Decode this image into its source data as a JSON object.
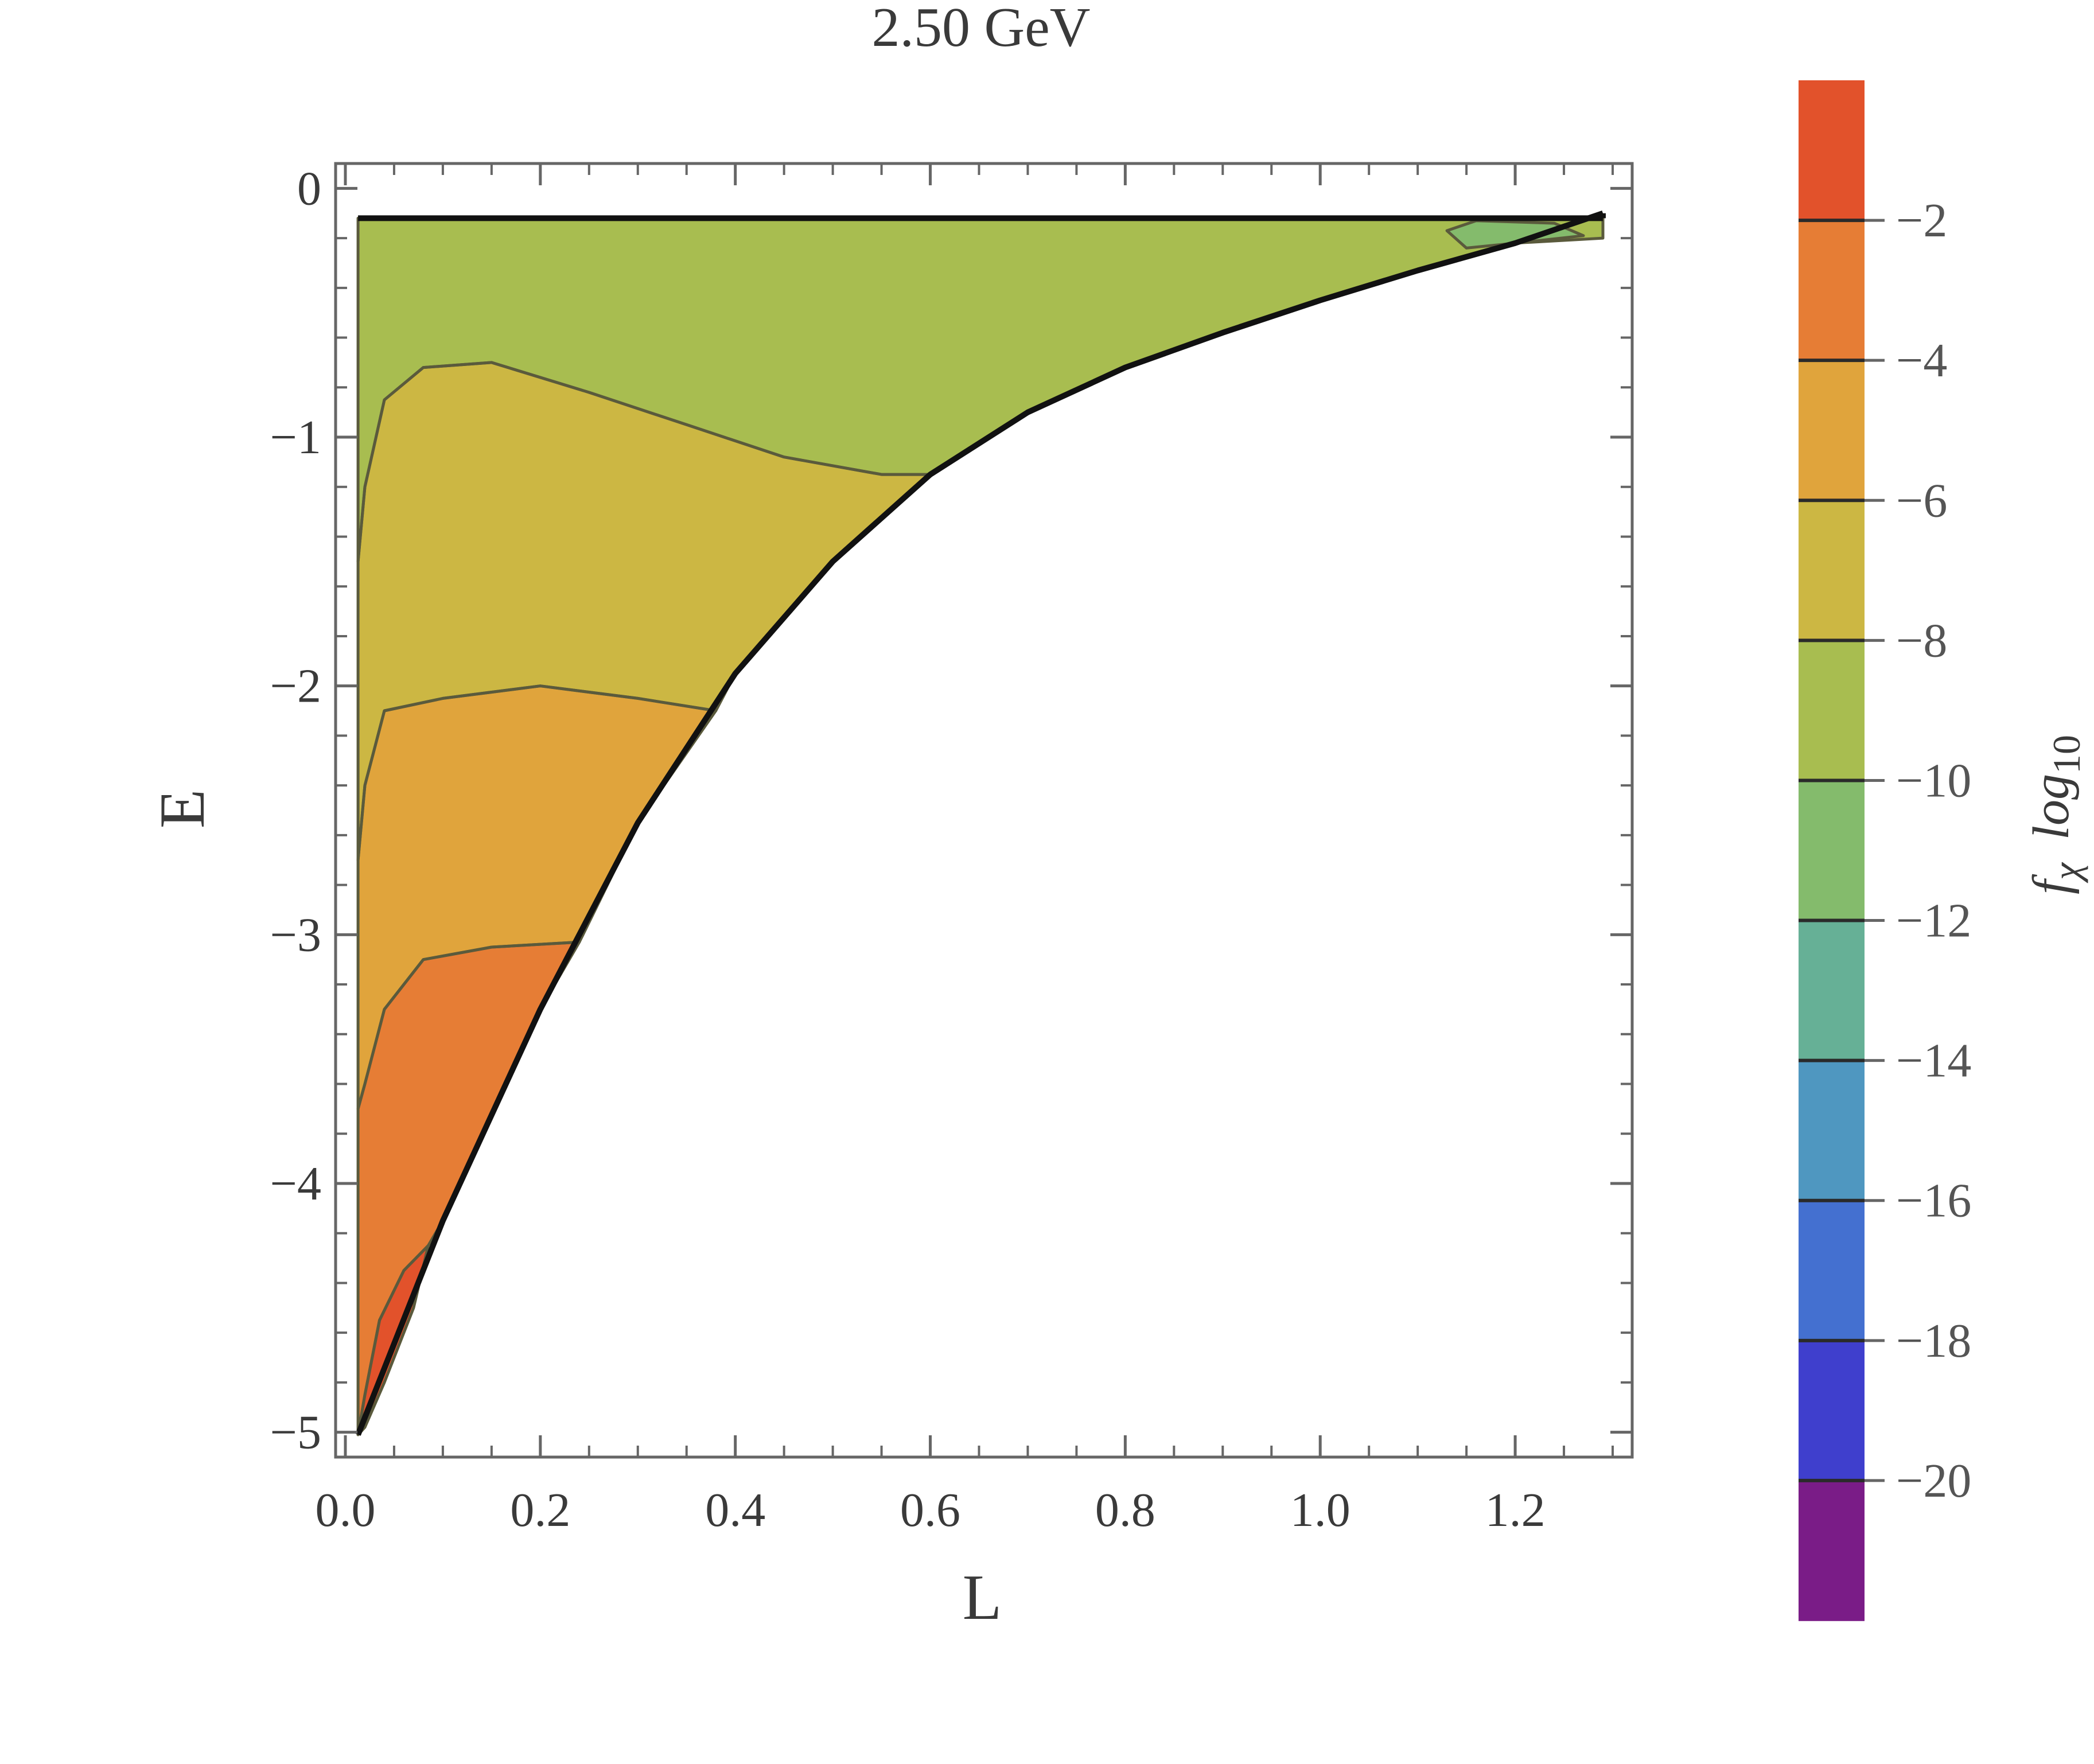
{
  "chart_data": {
    "type": "contour",
    "title": "2.50 GeV",
    "xlabel": "L",
    "ylabel": "E",
    "xlim": [
      -0.01,
      1.32
    ],
    "ylim": [
      -5.1,
      0.1
    ],
    "x_ticks": [
      0.0,
      0.2,
      0.4,
      0.6,
      0.8,
      1.0,
      1.2
    ],
    "x_tick_labels": [
      "0.0",
      "0.2",
      "0.4",
      "0.6",
      "0.8",
      "1.0",
      "1.2"
    ],
    "y_ticks": [
      0,
      -1,
      -2,
      -3,
      -4,
      -5
    ],
    "y_tick_labels": [
      "0",
      "−1",
      "−2",
      "−3",
      "−4",
      "−5"
    ],
    "colorbar": {
      "title_main": "f",
      "title_sub": "χ",
      "title_log": "log",
      "title_log_sub": "10",
      "range": [
        -22,
        0
      ],
      "ticks": [
        -2,
        -4,
        -6,
        -8,
        -10,
        -12,
        -14,
        -16,
        -18,
        -20
      ],
      "tick_labels": [
        "−2",
        "−4",
        "−6",
        "−8",
        "−10",
        "−12",
        "−14",
        "−16",
        "−18",
        "−20"
      ],
      "bands": [
        {
          "from": 0,
          "to": -2,
          "color": "#E2522B"
        },
        {
          "from": -2,
          "to": -4,
          "color": "#E67D35"
        },
        {
          "from": -4,
          "to": -6,
          "color": "#E0A43C"
        },
        {
          "from": -6,
          "to": -8,
          "color": "#CCB743"
        },
        {
          "from": -8,
          "to": -10,
          "color": "#A8BD50"
        },
        {
          "from": -10,
          "to": -12,
          "color": "#84BB6C"
        },
        {
          "from": -12,
          "to": -14,
          "color": "#66B096"
        },
        {
          "from": -14,
          "to": -16,
          "color": "#4F97C0"
        },
        {
          "from": -16,
          "to": -18,
          "color": "#4470D0"
        },
        {
          "from": -18,
          "to": -20,
          "color": "#3F3FCD"
        },
        {
          "from": -20,
          "to": -22,
          "color": "#7A1C87"
        }
      ]
    },
    "boundary": {
      "upper_E": -0.12,
      "points": [
        [
          0.013,
          -5.01
        ],
        [
          0.1,
          -4.15
        ],
        [
          0.2,
          -3.3
        ],
        [
          0.3,
          -2.55
        ],
        [
          0.4,
          -1.95
        ],
        [
          0.5,
          -1.5
        ],
        [
          0.6,
          -1.15
        ],
        [
          0.7,
          -0.9
        ],
        [
          0.8,
          -0.72
        ],
        [
          0.9,
          -0.58
        ],
        [
          1.0,
          -0.45
        ],
        [
          1.1,
          -0.33
        ],
        [
          1.2,
          -0.22
        ],
        [
          1.29,
          -0.1
        ]
      ]
    },
    "regions": [
      {
        "level_range": [
          -10,
          -8
        ],
        "color": "#A8BD50",
        "polygon": [
          [
            0.013,
            -0.12
          ],
          [
            1.29,
            -0.12
          ],
          [
            1.29,
            -0.2
          ],
          [
            1.2,
            -0.22
          ],
          [
            1.1,
            -0.33
          ],
          [
            1.0,
            -0.45
          ],
          [
            0.9,
            -0.58
          ],
          [
            0.8,
            -0.72
          ],
          [
            0.7,
            -0.9
          ],
          [
            0.6,
            -1.15
          ],
          [
            0.55,
            -1.15
          ],
          [
            0.45,
            -1.08
          ],
          [
            0.35,
            -0.95
          ],
          [
            0.25,
            -0.82
          ],
          [
            0.15,
            -0.7
          ],
          [
            0.08,
            -0.72
          ],
          [
            0.04,
            -0.85
          ],
          [
            0.02,
            -1.2
          ],
          [
            0.013,
            -1.5
          ]
        ]
      },
      {
        "level_range": [
          -8,
          -6
        ],
        "color": "#CCB743",
        "polygon": [
          [
            0.013,
            -1.5
          ],
          [
            0.02,
            -1.2
          ],
          [
            0.04,
            -0.85
          ],
          [
            0.08,
            -0.72
          ],
          [
            0.15,
            -0.7
          ],
          [
            0.25,
            -0.82
          ],
          [
            0.35,
            -0.95
          ],
          [
            0.45,
            -1.08
          ],
          [
            0.55,
            -1.15
          ],
          [
            0.6,
            -1.15
          ],
          [
            0.5,
            -1.5
          ],
          [
            0.4,
            -1.95
          ],
          [
            0.38,
            -2.1
          ],
          [
            0.3,
            -2.05
          ],
          [
            0.2,
            -2.0
          ],
          [
            0.1,
            -2.05
          ],
          [
            0.04,
            -2.1
          ],
          [
            0.02,
            -2.4
          ],
          [
            0.013,
            -2.7
          ]
        ]
      },
      {
        "level_range": [
          -6,
          -4
        ],
        "color": "#E0A43C",
        "polygon": [
          [
            0.013,
            -2.7
          ],
          [
            0.02,
            -2.4
          ],
          [
            0.04,
            -2.1
          ],
          [
            0.1,
            -2.05
          ],
          [
            0.2,
            -2.0
          ],
          [
            0.3,
            -2.05
          ],
          [
            0.38,
            -2.1
          ],
          [
            0.3,
            -2.55
          ],
          [
            0.24,
            -3.03
          ],
          [
            0.15,
            -3.05
          ],
          [
            0.08,
            -3.1
          ],
          [
            0.04,
            -3.3
          ],
          [
            0.02,
            -3.6
          ],
          [
            0.013,
            -3.7
          ]
        ]
      },
      {
        "level_range": [
          -4,
          -2
        ],
        "color": "#E67D35",
        "polygon": [
          [
            0.013,
            -3.7
          ],
          [
            0.02,
            -3.6
          ],
          [
            0.04,
            -3.3
          ],
          [
            0.08,
            -3.1
          ],
          [
            0.15,
            -3.05
          ],
          [
            0.24,
            -3.03
          ],
          [
            0.2,
            -3.3
          ],
          [
            0.1,
            -4.15
          ],
          [
            0.085,
            -4.25
          ],
          [
            0.06,
            -4.35
          ],
          [
            0.035,
            -4.55
          ],
          [
            0.02,
            -4.85
          ],
          [
            0.013,
            -5.01
          ]
        ]
      },
      {
        "level_range": [
          -2,
          0
        ],
        "color": "#E2522B",
        "polygon": [
          [
            0.013,
            -5.01
          ],
          [
            0.02,
            -4.85
          ],
          [
            0.035,
            -4.55
          ],
          [
            0.06,
            -4.35
          ],
          [
            0.085,
            -4.25
          ],
          [
            0.07,
            -4.5
          ],
          [
            0.04,
            -4.8
          ],
          [
            0.02,
            -4.98
          ]
        ]
      },
      {
        "level_range": [
          -12,
          -10
        ],
        "color": "#84BB6C",
        "polygon": [
          [
            1.13,
            -0.17
          ],
          [
            1.16,
            -0.13
          ],
          [
            1.24,
            -0.14
          ],
          [
            1.27,
            -0.19
          ],
          [
            1.2,
            -0.22
          ],
          [
            1.15,
            -0.24
          ]
        ]
      }
    ]
  }
}
